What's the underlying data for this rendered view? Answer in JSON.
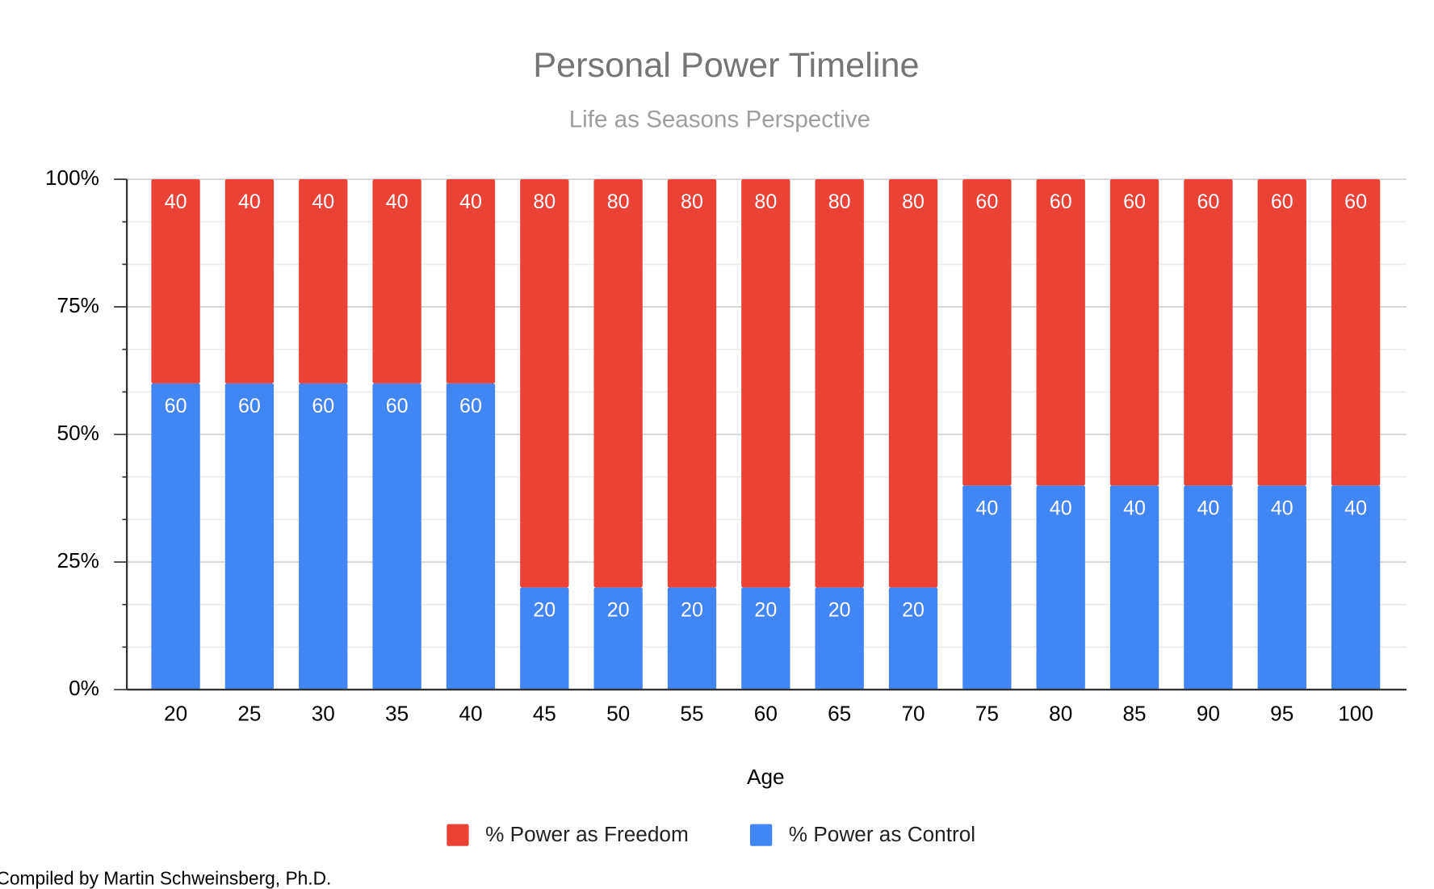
{
  "chart_data": {
    "type": "stacked_bar",
    "title": "Personal Power Timeline",
    "subtitle": "Life as Seasons Perspective",
    "x_label": "Age",
    "categories": [
      "20",
      "25",
      "30",
      "35",
      "40",
      "45",
      "50",
      "55",
      "60",
      "65",
      "70",
      "75",
      "80",
      "85",
      "90",
      "95",
      "100"
    ],
    "series": [
      {
        "name": "% Power as Freedom",
        "color": "#ea4335",
        "values": [
          40,
          40,
          40,
          40,
          40,
          80,
          80,
          80,
          80,
          80,
          80,
          60,
          60,
          60,
          60,
          60,
          60
        ]
      },
      {
        "name": "% Power as Control",
        "color": "#4285f4",
        "values": [
          60,
          60,
          60,
          60,
          60,
          20,
          20,
          20,
          20,
          20,
          20,
          40,
          40,
          40,
          40,
          40,
          40
        ]
      }
    ],
    "ylim": [
      0,
      100
    ],
    "yticks": [
      {
        "value": 0,
        "label": "0%"
      },
      {
        "value": 25,
        "label": "25%"
      },
      {
        "value": 50,
        "label": "50%"
      },
      {
        "value": 75,
        "label": "75%"
      },
      {
        "value": 100,
        "label": "100%"
      }
    ],
    "grid": true,
    "legend": "bottom",
    "footnote": "Compiled by Martin Schweinsberg, Ph.D."
  }
}
